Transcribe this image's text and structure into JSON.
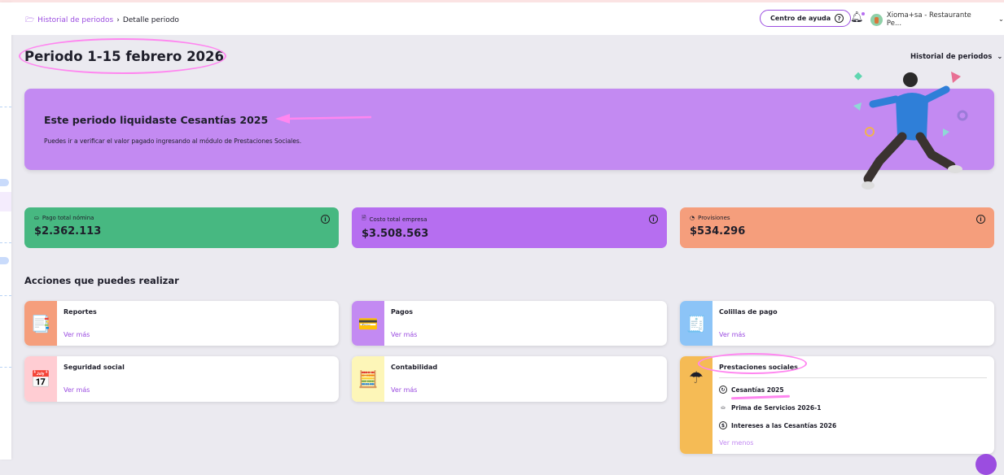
{
  "breadcrumb": {
    "parent": "Historial de periodos",
    "current": "Detalle periodo",
    "separator": "›"
  },
  "header": {
    "help_label": "Centro de ayuda",
    "user_name": "Xioma+sa - Restaurante Pe..."
  },
  "page": {
    "title": "Periodo 1-15 febrero 2026",
    "history_dropdown": "Historial de periodos"
  },
  "banner": {
    "title": "Este periodo liquidaste Cesantías 2025",
    "text": "Puedes ir a verificar el valor pagado ingresando al módulo de Prestaciones Sociales.",
    "color": "#c38af2"
  },
  "stats": [
    {
      "label": "Pago total nómina",
      "value": "$2.362.113",
      "color": "#47b881",
      "icon": "hand-money-icon"
    },
    {
      "label": "Costo total empresa",
      "value": "$3.508.563",
      "color": "#b66ef0",
      "icon": "document-icon"
    },
    {
      "label": "Provisiones",
      "value": "$534.296",
      "color": "#f59e7c",
      "icon": "piggy-bank-icon"
    }
  ],
  "actions": {
    "title": "Acciones que puedes realizar",
    "more": "Ver más",
    "less": "Ver menos",
    "items": [
      {
        "label": "Reportes",
        "color": "#f59e7c",
        "icon": "📑"
      },
      {
        "label": "Pagos",
        "color": "#c38af2",
        "icon": "💳"
      },
      {
        "label": "Colillas de pago",
        "color": "#8cc4f7",
        "icon": "🧾"
      },
      {
        "label": "Seguridad social",
        "color": "#ffcdd3",
        "icon": "📅"
      },
      {
        "label": "Contabilidad",
        "color": "#fdf6b8",
        "icon": "🧮"
      },
      {
        "label": "Prestaciones sociales",
        "color": "#f5bb55",
        "icon": "☂"
      }
    ],
    "prestaciones": [
      "Cesantías 2025",
      "Prima de Servicios 2026-1",
      "Intereses a las Cesantías 2026"
    ]
  }
}
